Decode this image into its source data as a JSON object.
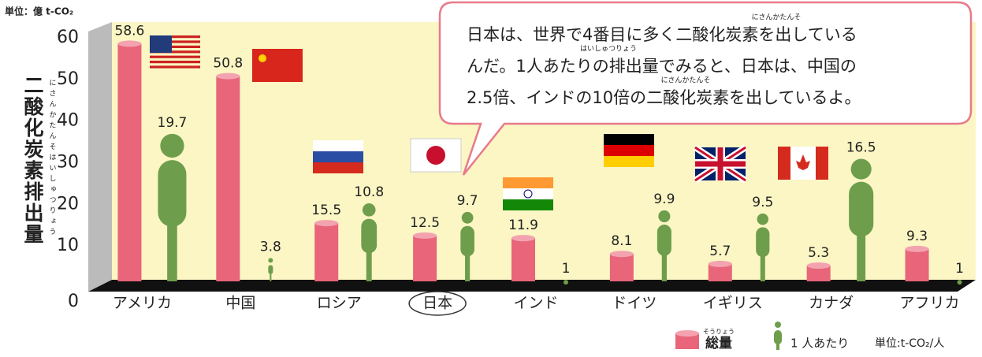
{
  "chart_data": {
    "type": "bar",
    "y_unit": "単位：億 t-CO₂",
    "y_label": "二酸化炭素排出量",
    "y_label_ruby": "にさんかたんそはいしゅつりょう",
    "categories": [
      "アメリカ",
      "中国",
      "ロシア",
      "日本",
      "インド",
      "ドイツ",
      "イギリス",
      "カナダ",
      "アフリカ"
    ],
    "highlight": "日本",
    "series": [
      {
        "name": "総量",
        "name_ruby": "そうりょう",
        "color": "#e8657a",
        "values": [
          58.6,
          50.8,
          15.5,
          12.5,
          11.9,
          8.1,
          5.7,
          5.3,
          9.3
        ]
      },
      {
        "name": "1 人あたり",
        "color": "#6e9e4c",
        "axis": "y2",
        "values": [
          19.7,
          3.8,
          10.8,
          9.7,
          1.0,
          9.9,
          9.5,
          16.5,
          1.0
        ]
      }
    ],
    "y2_unit": "単位:t-CO₂/人",
    "ylim": [
      0,
      60
    ],
    "yticks": [
      0,
      10,
      20,
      30,
      40,
      50,
      60
    ],
    "y2lim": [
      0,
      32
    ],
    "annotation": {
      "lines": [
        "日本は、世界で4番目に多く二酸化炭素を出している",
        "んだ。1人あたりの排出量でみると、日本は、中国の",
        "2.5倍、インドの10倍の二酸化炭素を出しているよ。"
      ],
      "ruby": [
        "にさんかたんそ",
        "はいしゅつりょう",
        "にさんかたんそ"
      ]
    }
  }
}
